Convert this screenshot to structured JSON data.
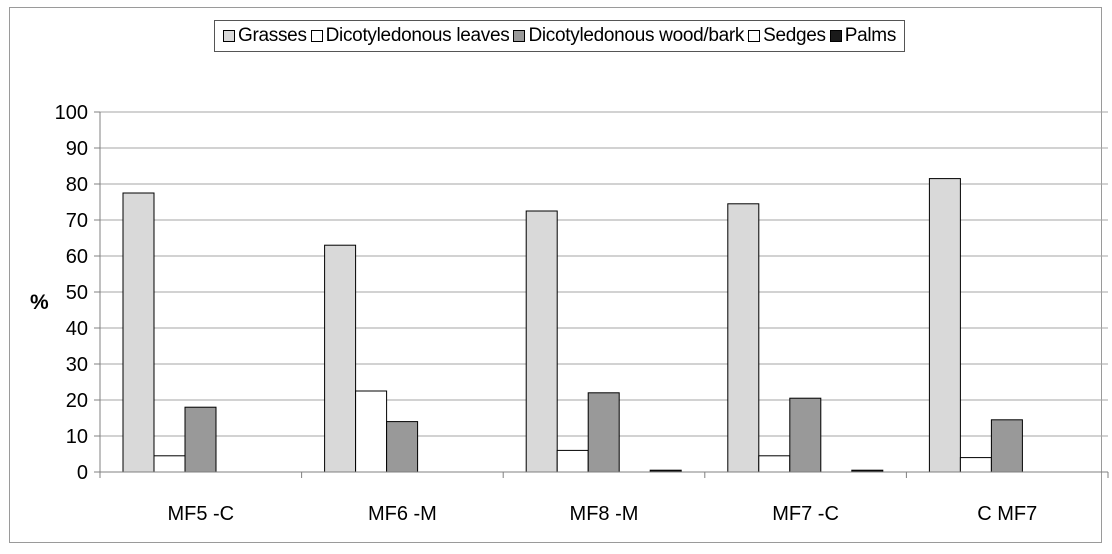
{
  "chart_data": {
    "type": "bar",
    "categories": [
      "MF5 -C",
      "MF6 -M",
      "MF8 -M",
      "MF7 -C",
      "C MF7"
    ],
    "series": [
      {
        "name": "Grasses",
        "color": "#d9d9d9",
        "values": [
          77.5,
          63,
          72.5,
          74.5,
          81.5
        ]
      },
      {
        "name": "Dicotyledonous leaves",
        "color": "#ffffff",
        "values": [
          4.5,
          22.5,
          6,
          4.5,
          4
        ]
      },
      {
        "name": "Dicotyledonous wood/bark",
        "color": "#999999",
        "values": [
          18,
          14,
          22,
          20.5,
          14.5
        ]
      },
      {
        "name": "Sedges",
        "color": "#ffffff",
        "values": [
          0,
          0,
          0,
          0,
          0
        ]
      },
      {
        "name": "Palms",
        "color": "#1a1a1a",
        "values": [
          0,
          0,
          0.5,
          0.5,
          0
        ]
      }
    ],
    "ylabel": "%",
    "ylim": [
      0,
      100
    ],
    "yticks": [
      0,
      10,
      20,
      30,
      40,
      50,
      60,
      70,
      80,
      90,
      100
    ],
    "grid": true,
    "legend_position": "top"
  }
}
